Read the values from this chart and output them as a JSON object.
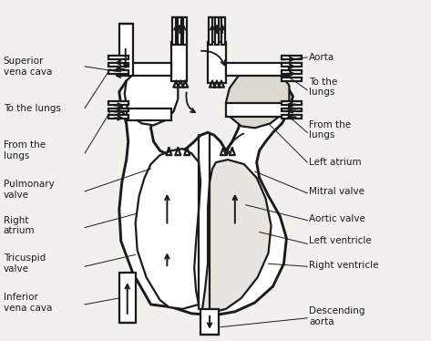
{
  "background_color": "#f2f0ec",
  "line_color": "#1a1a1a",
  "text_color": "#1a1a1a",
  "lw": 1.6,
  "fontsize": 7.5,
  "labels": {
    "superior_vena_cava": "Superior\nvena cava",
    "aorta": "Aorta",
    "to_the_lungs_left": "To the lungs",
    "to_the_lungs_right": "To the\nlungs",
    "from_the_lungs_left": "From the\nlungs",
    "from_the_lungs_right": "From the\nlungs",
    "pulmonary_valve": "Pulmonary\nvalve",
    "left_atrium": "Left atrium",
    "mitral_valve": "Mitral valve",
    "right_atrium": "Right\natrium",
    "aortic_valve": "Aortic valve",
    "left_ventricle": "Left ventricle",
    "tricuspid_valve": "Tricuspid\nvalve",
    "right_ventricle": "Right ventricle",
    "inferior_vena_cava": "Inferior\nvena cava",
    "descending_aorta": "Descending\naorta"
  }
}
